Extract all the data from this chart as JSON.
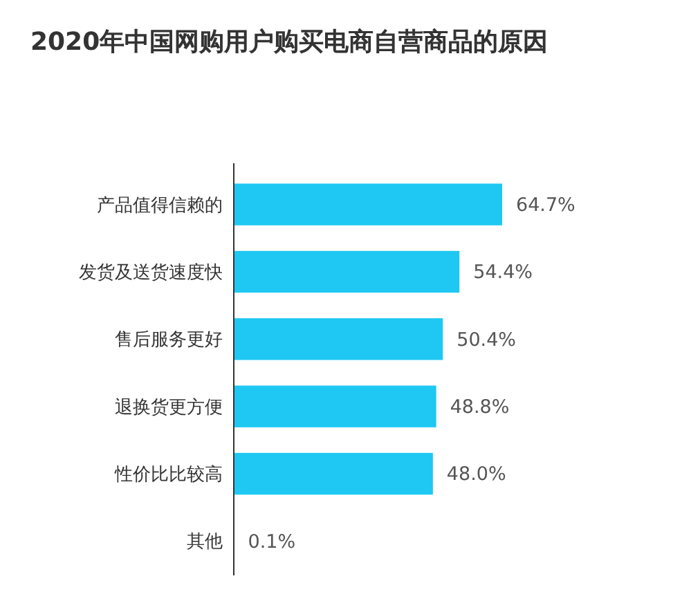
{
  "chart_data": {
    "type": "bar",
    "orientation": "horizontal",
    "title": "2020年中国网购用户购买电商自营商品的原因",
    "categories": [
      "产品值得信赖的",
      "发货及送货速度快",
      "售后服务更好",
      "退换货更方便",
      "性价比比较高",
      "其他"
    ],
    "values": [
      64.7,
      54.4,
      50.4,
      48.8,
      48.0,
      0.1
    ],
    "value_labels": [
      "64.7%",
      "54.4%",
      "50.4%",
      "48.8%",
      "48.0%",
      "0.1%"
    ],
    "color": "#1ec8f2",
    "relative": false
  }
}
